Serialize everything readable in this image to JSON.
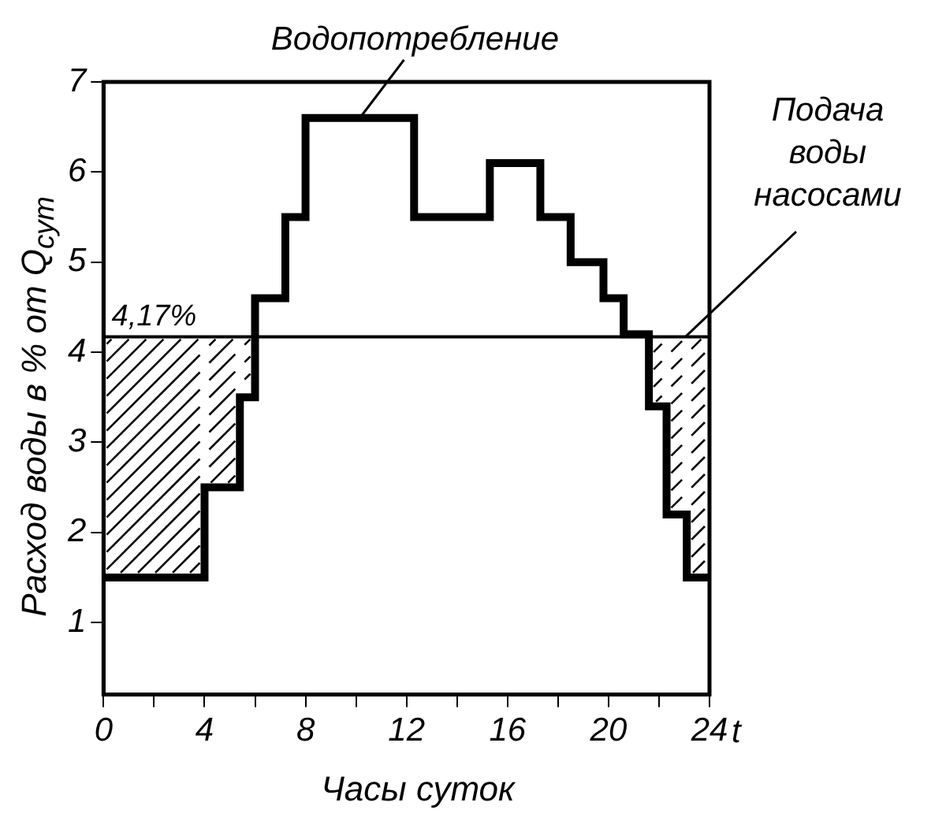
{
  "chart_data": {
    "type": "step",
    "xlabel": "Часы суток",
    "ylabel": "Расход воды в % от Q$_{сут}$",
    "series": [
      {
        "name": "Водопотребление",
        "color": "#000000",
        "x": [
          0,
          4,
          5.4,
          6,
          7.2,
          8,
          12.3,
          15.3,
          17.3,
          18.5,
          19.8,
          20.6,
          21.6,
          22.3,
          23.1,
          24
        ],
        "values": [
          1.5,
          2.5,
          3.5,
          4.6,
          5.5,
          6.6,
          5.5,
          6.1,
          5.5,
          5.0,
          4.6,
          4.2,
          3.4,
          2.2,
          1.5,
          1.5
        ]
      },
      {
        "name": "Подача воды насосами",
        "type": "line",
        "color": "#000000",
        "x": [
          0,
          24
        ],
        "values": [
          4.17,
          4.17
        ]
      }
    ],
    "annotations": [
      {
        "text": "4,17%",
        "x": 2,
        "y": 4.17
      },
      "t"
    ],
    "xlim": [
      0,
      24
    ],
    "xticks": [
      0,
      {
        "value": 2,
        "label": null
      },
      4,
      {
        "value": 6,
        "label": null
      },
      8,
      {
        "value": 10,
        "label": null
      },
      12,
      {
        "value": 14,
        "label": null
      },
      16,
      {
        "value": 18,
        "label": null
      },
      20,
      {
        "value": 22,
        "label": null
      },
      24
    ],
    "ylim": [
      0.2,
      7
    ],
    "yticks": [
      1,
      2,
      3,
      4,
      5,
      6,
      7
    ],
    "grid": false,
    "legend": false,
    "line_style": "solid",
    "marker": "none"
  }
}
